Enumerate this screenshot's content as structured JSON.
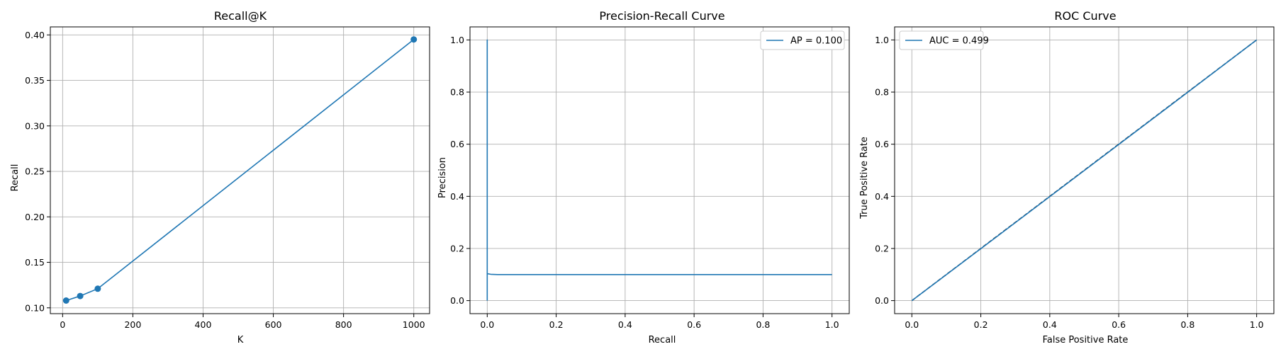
{
  "colors": {
    "series": "#1f77b4",
    "grid": "#b0b0b0",
    "chance": "#000000"
  },
  "chart_data": [
    {
      "type": "line",
      "title": "Recall@K",
      "xlabel": "K",
      "ylabel": "Recall",
      "xlim": [
        -35,
        1045
      ],
      "ylim": [
        0.0936,
        0.4088
      ],
      "xticks": [
        0,
        200,
        400,
        600,
        800,
        1000
      ],
      "yticks": [
        0.1,
        0.15,
        0.2,
        0.25,
        0.3,
        0.35,
        0.4
      ],
      "ytick_decimals": 2,
      "grid": true,
      "legend": null,
      "series": [
        {
          "x": [
            10,
            50,
            100,
            1000
          ],
          "y": [
            0.108,
            0.113,
            0.121,
            0.395
          ],
          "markers": true
        }
      ]
    },
    {
      "type": "line",
      "title": "Precision-Recall Curve",
      "xlabel": "Recall",
      "ylabel": "Precision",
      "xlim": [
        -0.05,
        1.05
      ],
      "ylim": [
        -0.05,
        1.05
      ],
      "xticks": [
        0.0,
        0.2,
        0.4,
        0.6,
        0.8,
        1.0
      ],
      "yticks": [
        0.0,
        0.2,
        0.4,
        0.6,
        0.8,
        1.0
      ],
      "ytick_decimals": 1,
      "grid": true,
      "legend": "top-right",
      "series": [
        {
          "name": "AP = 0.100",
          "x": [
            0.0,
            0.0,
            0.0,
            0.002,
            0.01,
            0.03,
            0.1,
            0.3,
            0.5,
            0.7,
            0.9,
            1.0
          ],
          "y": [
            0.0,
            1.0,
            0.103,
            0.103,
            0.101,
            0.1,
            0.1,
            0.1,
            0.1,
            0.1,
            0.1,
            0.1
          ],
          "markers": false
        }
      ]
    },
    {
      "type": "line",
      "title": "ROC Curve",
      "xlabel": "False Positive Rate",
      "ylabel": "True Positive Rate",
      "xlim": [
        -0.05,
        1.05
      ],
      "ylim": [
        -0.05,
        1.05
      ],
      "xticks": [
        0.0,
        0.2,
        0.4,
        0.6,
        0.8,
        1.0
      ],
      "yticks": [
        0.0,
        0.2,
        0.4,
        0.6,
        0.8,
        1.0
      ],
      "ytick_decimals": 1,
      "grid": true,
      "legend": "top-left",
      "series": [
        {
          "name": "AUC = 0.499",
          "x": [
            0.0,
            0.25,
            0.5,
            0.75,
            1.0
          ],
          "y": [
            0.0,
            0.249,
            0.499,
            0.749,
            1.0
          ],
          "markers": false
        }
      ],
      "reference_line": {
        "x": [
          0,
          1
        ],
        "y": [
          0,
          1
        ],
        "style": "dashed"
      }
    }
  ]
}
